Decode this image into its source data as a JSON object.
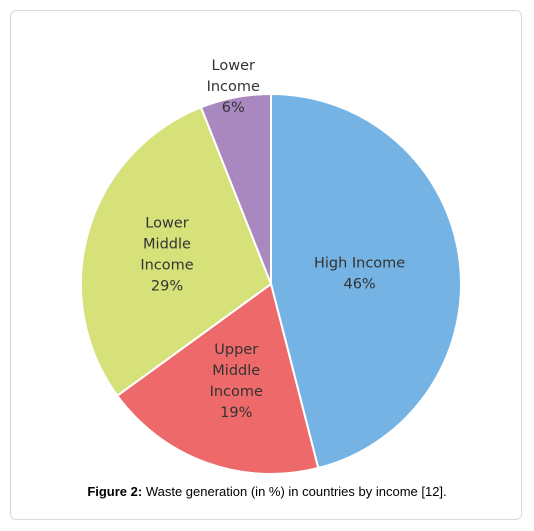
{
  "chart_data": {
    "type": "pie",
    "slices": [
      {
        "name": "High Income",
        "value": 46,
        "label_lines": [
          "High Income",
          "46%"
        ],
        "color": "#74b3e3"
      },
      {
        "name": "Upper Middle Income",
        "value": 19,
        "label_lines": [
          "Upper",
          "Middle",
          "Income",
          "19%"
        ],
        "color": "#ee6a6a"
      },
      {
        "name": "Lower Middle Income",
        "value": 29,
        "label_lines": [
          "Lower",
          "Middle",
          "Income",
          "29%"
        ],
        "color": "#d6e17a"
      },
      {
        "name": "Lower Income",
        "value": 6,
        "label_lines": [
          "Lower",
          "Income",
          "6%"
        ],
        "color": "#a988c0"
      }
    ]
  },
  "caption": {
    "prefix": "Figure 2:",
    "text": " Waste generation (in %) in countries by income [12]."
  }
}
